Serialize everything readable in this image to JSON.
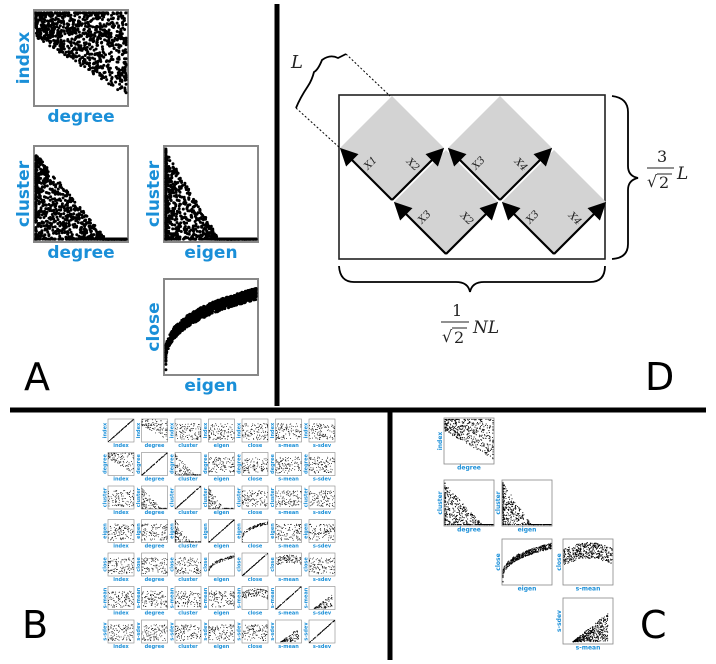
{
  "panel_labels": {
    "a": "A",
    "b": "B",
    "c": "C",
    "d": "D"
  },
  "colors": {
    "axis_label": "#1a8fd8",
    "dot": "#000000",
    "square_fill": "#d3d3d3",
    "frame": "#555555"
  },
  "panel_a": {
    "plots": [
      {
        "x": "degree",
        "y": "index"
      },
      {
        "x": "degree",
        "y": "cluster"
      },
      {
        "x": "eigen",
        "y": "cluster"
      },
      {
        "x": "eigen",
        "y": "close"
      }
    ]
  },
  "panel_b": {
    "variables": [
      "index",
      "degree",
      "cluster",
      "eigen",
      "close",
      "s-mean",
      "s-sdev"
    ]
  },
  "panel_c": {
    "plots": [
      {
        "x": "degree",
        "y": "index"
      },
      {
        "x": "degree",
        "y": "cluster"
      },
      {
        "x": "eigen",
        "y": "cluster"
      },
      {
        "x": "eigen",
        "y": "close"
      },
      {
        "x": "s-mean",
        "y": "close"
      },
      {
        "x": "s-mean",
        "y": "s-sdev"
      }
    ]
  },
  "panel_d": {
    "L": "L",
    "height_num": "3",
    "height_den": "2",
    "height_var": "L",
    "width_num": "1",
    "width_den": "2",
    "width_var": "NL",
    "square_labels": [
      "X1",
      "X2",
      "X3",
      "X4",
      "X3",
      "X2",
      "X3",
      "X4"
    ]
  }
}
